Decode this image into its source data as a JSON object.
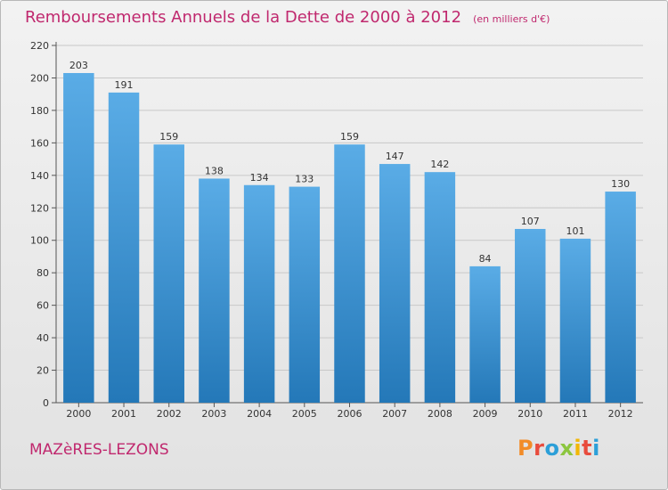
{
  "title": {
    "main": "Remboursements Annuels de la Dette de 2000 à 2012",
    "unit": "(en milliers d'€)"
  },
  "commune": "MAZèRES-LEZONS",
  "logo": {
    "text": "Proxiti",
    "colors": [
      "#f28c28",
      "#e84c3d",
      "#2c9fd8",
      "#8cc63f",
      "#f2b705",
      "#e84c3d",
      "#2c9fd8"
    ]
  },
  "colors": {
    "bar_top": "#5aace6",
    "bar_bottom": "#2478b8",
    "text_accent": "#c0286e"
  },
  "chart_data": {
    "type": "bar",
    "title": "Remboursements Annuels de la Dette de 2000 à 2012",
    "subtitle": "(en milliers d'€)",
    "categories": [
      "2000",
      "2001",
      "2002",
      "2003",
      "2004",
      "2005",
      "2006",
      "2007",
      "2008",
      "2009",
      "2010",
      "2011",
      "2012"
    ],
    "values": [
      203,
      191,
      159,
      138,
      134,
      133,
      159,
      147,
      142,
      84,
      107,
      101,
      130
    ],
    "yticks": [
      0,
      20,
      40,
      60,
      80,
      100,
      120,
      140,
      160,
      180,
      200,
      220
    ],
    "ylim": [
      0,
      220
    ],
    "grid": true,
    "data_labels": true
  }
}
